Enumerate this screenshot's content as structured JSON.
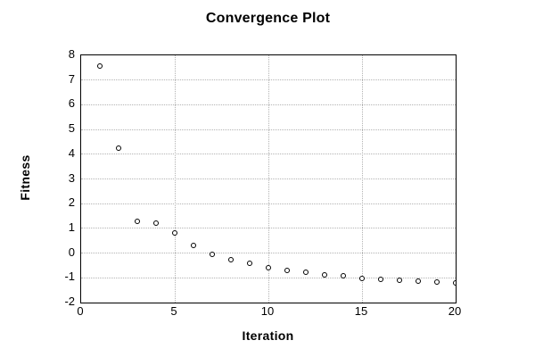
{
  "chart_data": {
    "type": "scatter",
    "title": "Convergence Plot",
    "xlabel": "Iteration",
    "ylabel": "Fitness",
    "xlim": [
      0,
      20
    ],
    "ylim": [
      -2,
      8
    ],
    "x_ticks": [
      0,
      5,
      10,
      15,
      20
    ],
    "y_ticks": [
      8,
      7,
      6,
      5,
      4,
      3,
      2,
      1,
      0,
      -1,
      -2
    ],
    "x_gridlines": [
      5,
      10,
      15
    ],
    "y_gridlines": [
      7,
      6,
      5,
      4,
      3,
      2,
      1,
      0,
      -1
    ],
    "grid_style": "dotted",
    "legend": "none",
    "marker": "open-circle",
    "colors": {
      "frame": "#000000",
      "grid": "#b3b3b3",
      "marker_stroke": "#000000",
      "marker_fill": "#ffffff",
      "text": "#000000",
      "background": "#ffffff"
    },
    "series": [
      {
        "name": "Fitness",
        "x": [
          1,
          2,
          3,
          4,
          5,
          6,
          7,
          8,
          9,
          10,
          11,
          12,
          13,
          14,
          15,
          16,
          17,
          18,
          19,
          20
        ],
        "y": [
          7.55,
          4.25,
          1.3,
          1.2,
          0.82,
          0.32,
          -0.04,
          -0.26,
          -0.41,
          -0.6,
          -0.7,
          -0.78,
          -0.88,
          -0.92,
          -1.02,
          -1.05,
          -1.1,
          -1.13,
          -1.16,
          -1.22
        ]
      }
    ]
  }
}
